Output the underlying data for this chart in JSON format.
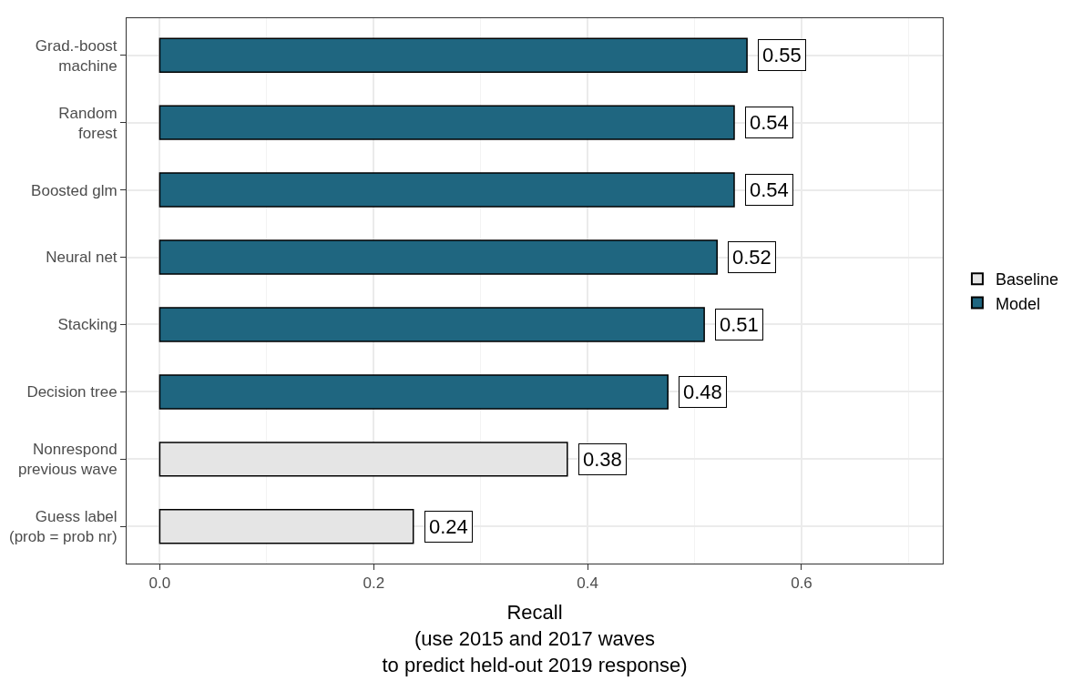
{
  "chart_data": {
    "type": "bar",
    "orientation": "horizontal",
    "categories": [
      "Grad.-boost\nmachine",
      "Random\nforest",
      "Boosted glm",
      "Neural net",
      "Stacking",
      "Decision tree",
      "Nonrespond\nprevious wave",
      "Guess label\n(prob = prob nr)"
    ],
    "series": [
      {
        "name": "Baseline",
        "color": "#e5e5e5",
        "values": [
          null,
          null,
          null,
          null,
          null,
          null,
          0.381,
          0.237
        ],
        "value_labels": [
          null,
          null,
          null,
          null,
          null,
          null,
          "0.38",
          "0.24"
        ]
      },
      {
        "name": "Model",
        "color": "#1f6680",
        "values": [
          0.549,
          0.537,
          0.537,
          0.521,
          0.509,
          0.475,
          null,
          null
        ],
        "value_labels": [
          "0.55",
          "0.54",
          "0.54",
          "0.52",
          "0.51",
          "0.48",
          null,
          null
        ]
      }
    ],
    "xlabel": "Recall\n(use 2015 and 2017 waves\nto predict held-out 2019 response)",
    "xlim": [
      -0.031,
      0.732
    ],
    "xticks": [
      {
        "value": 0.0,
        "label": "0.0"
      },
      {
        "value": 0.1,
        "label": null
      },
      {
        "value": 0.2,
        "label": "0.2"
      },
      {
        "value": 0.3,
        "label": null
      },
      {
        "value": 0.4,
        "label": "0.4"
      },
      {
        "value": 0.5,
        "label": null
      },
      {
        "value": 0.6,
        "label": "0.6"
      },
      {
        "value": 0.7,
        "label": null
      }
    ],
    "grid": true,
    "legend": "right"
  }
}
